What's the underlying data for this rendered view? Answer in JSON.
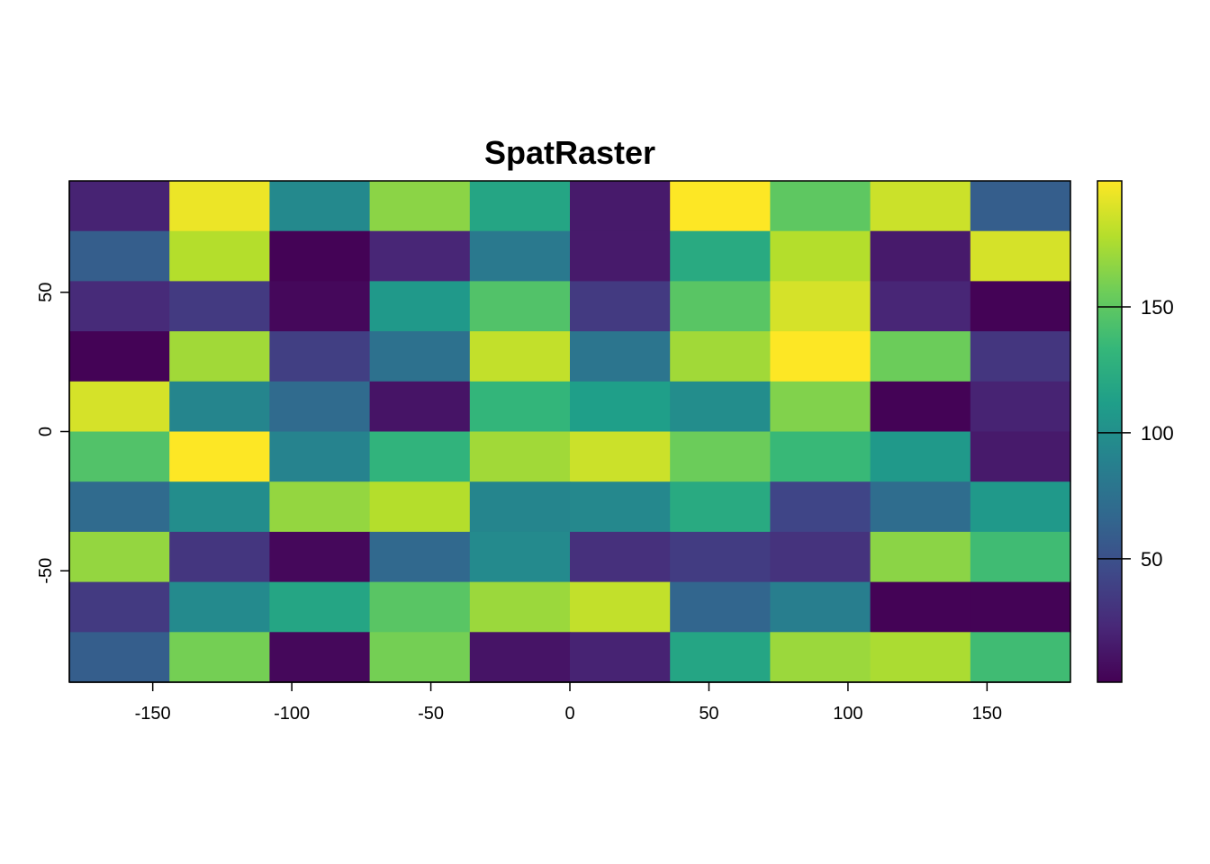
{
  "chart_data": {
    "type": "heatmap",
    "title": "SpatRaster",
    "xlabel": "",
    "ylabel": "",
    "xlim": [
      -180,
      180
    ],
    "ylim": [
      -90,
      90
    ],
    "ncols": 10,
    "nrows": 10,
    "x_ticks": [
      -150,
      -100,
      -50,
      0,
      50,
      100,
      150
    ],
    "x_tick_labels": [
      "-150",
      "-100",
      "-50",
      "0",
      "50",
      "100",
      "150"
    ],
    "y_ticks": [
      -50,
      0,
      50
    ],
    "y_tick_labels": [
      "-50",
      "0",
      "50"
    ],
    "value_range": [
      1,
      200
    ],
    "legend": {
      "position": "right",
      "ticks": [
        50,
        100,
        150
      ],
      "tick_labels": [
        "50",
        "100",
        "150"
      ]
    },
    "colormap": [
      "#440154",
      "#482878",
      "#3E4A89",
      "#31688E",
      "#26828E",
      "#1F9E89",
      "#35B779",
      "#6DCD59",
      "#B4DE2C",
      "#FDE725"
    ],
    "values": [
      [
        20,
        195,
        95,
        165,
        118,
        15,
        200,
        150,
        185,
        60
      ],
      [
        60,
        178,
        2,
        22,
        82,
        15,
        122,
        178,
        15,
        188
      ],
      [
        25,
        35,
        5,
        108,
        145,
        35,
        148,
        188,
        22,
        2
      ],
      [
        2,
        172,
        38,
        75,
        182,
        78,
        172,
        200,
        155,
        32
      ],
      [
        188,
        92,
        70,
        12,
        132,
        112,
        98,
        162,
        2,
        20
      ],
      [
        145,
        200,
        90,
        130,
        172,
        185,
        155,
        135,
        108,
        15
      ],
      [
        70,
        98,
        168,
        178,
        92,
        94,
        122,
        42,
        72,
        108
      ],
      [
        168,
        32,
        5,
        68,
        96,
        28,
        36,
        30,
        165,
        138
      ],
      [
        35,
        96,
        118,
        148,
        170,
        182,
        66,
        86,
        2,
        2
      ],
      [
        60,
        158,
        5,
        158,
        12,
        20,
        118,
        170,
        175,
        138
      ]
    ]
  }
}
